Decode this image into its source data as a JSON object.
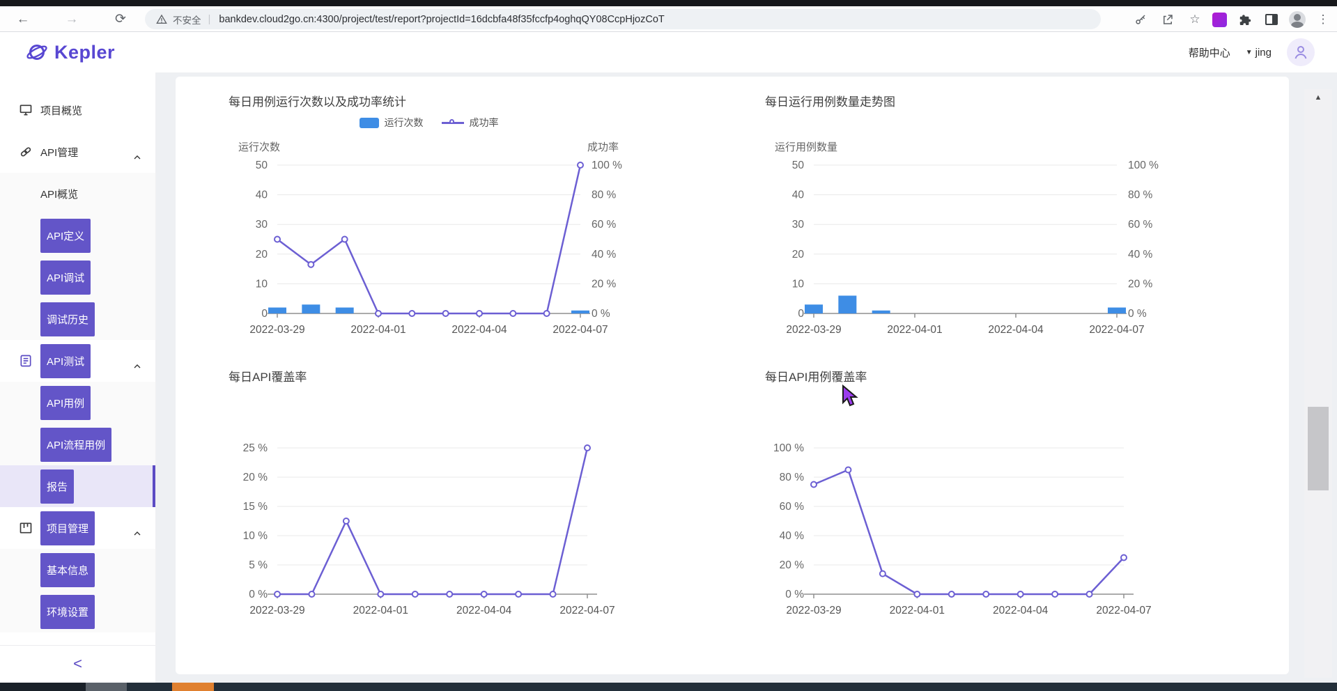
{
  "browser": {
    "security_label": "不安全",
    "url": "bankdev.cloud2go.cn:4300/project/test/report?projectId=16dcbfa48f35fccfp4oghqQY08CcpHjozCoT",
    "icons": {
      "back": "←",
      "forward": "→",
      "refresh": "⟳",
      "star": "☆",
      "menu": "⋮"
    }
  },
  "header": {
    "brand": "Kepler",
    "help_center": "帮助中心",
    "caret": "▼",
    "username": "jing"
  },
  "sidebar": {
    "collapse_label": "<",
    "items": [
      {
        "label": "项目概览",
        "type": "section",
        "icon": "monitor-icon",
        "expanded": false,
        "boxed": false
      },
      {
        "label": "API管理",
        "type": "section",
        "icon": "link-icon",
        "expanded": true,
        "boxed": false
      },
      {
        "label": "API概览",
        "type": "child",
        "boxed": false
      },
      {
        "label": "API定义",
        "type": "child",
        "boxed": true
      },
      {
        "label": "API调试",
        "type": "child",
        "boxed": true
      },
      {
        "label": "调试历史",
        "type": "child",
        "boxed": true
      },
      {
        "label": "API测试",
        "type": "section",
        "icon": "document-icon",
        "icon_color": "#5b4bc4",
        "expanded": true,
        "boxed": true
      },
      {
        "label": "API用例",
        "type": "child",
        "boxed": true
      },
      {
        "label": "API流程用例",
        "type": "child",
        "boxed": true
      },
      {
        "label": "报告",
        "type": "child",
        "boxed": true,
        "selected": true
      },
      {
        "label": "项目管理",
        "type": "section",
        "icon": "kanban-icon",
        "expanded": true,
        "boxed": true
      },
      {
        "label": "基本信息",
        "type": "child",
        "boxed": true
      },
      {
        "label": "环境设置",
        "type": "child",
        "boxed": true
      }
    ]
  },
  "ui": {
    "scroll_up_glyph": "▲"
  },
  "colors": {
    "accent_purple": "#6355c8",
    "brand_purple": "#5847d2",
    "bar_blue": "#3e8de5",
    "line_purple": "#6c5fd3",
    "selected_row_bg": "#e9e6f8",
    "progress_orange": "#e0802f"
  },
  "chart_data": [
    {
      "type": "bar+line",
      "title": "每日用例运行次数以及成功率统计",
      "legend": [
        {
          "label": "运行次数",
          "marker": "bar",
          "color": "#3e8de5"
        },
        {
          "label": "成功率",
          "marker": "line",
          "color": "#6c5fd3"
        }
      ],
      "x_categories": [
        "2022-03-29",
        "2022-03-30",
        "2022-03-31",
        "2022-04-01",
        "2022-04-02",
        "2022-04-03",
        "2022-04-04",
        "2022-04-05",
        "2022-04-06",
        "2022-04-07"
      ],
      "x_tick_indices": [
        0,
        3,
        6,
        9
      ],
      "left_axis": {
        "title": "运行次数",
        "min": 0,
        "max": 50,
        "tick_labels": [
          "50",
          "40",
          "30",
          "20",
          "10",
          "0"
        ]
      },
      "right_axis": {
        "title": "成功率",
        "min": 0,
        "max": 100,
        "tick_labels": [
          "100 %",
          "80 %",
          "60 %",
          "40 %",
          "20 %",
          "0 %"
        ]
      },
      "series": [
        {
          "name": "运行次数",
          "type": "bar",
          "axis": "left",
          "color": "#3e8de5",
          "values": [
            2,
            3,
            2,
            0,
            0,
            0,
            0,
            0,
            0,
            1
          ]
        },
        {
          "name": "成功率",
          "type": "line",
          "axis": "right",
          "color": "#6c5fd3",
          "values": [
            50,
            33,
            50,
            0,
            0,
            0,
            0,
            0,
            0,
            100
          ]
        }
      ]
    },
    {
      "type": "bar",
      "title": "每日运行用例数量走势图",
      "legend": [],
      "x_categories": [
        "2022-03-29",
        "2022-03-30",
        "2022-03-31",
        "2022-04-01",
        "2022-04-02",
        "2022-04-03",
        "2022-04-04",
        "2022-04-05",
        "2022-04-06",
        "2022-04-07"
      ],
      "x_tick_indices": [
        0,
        3,
        6,
        9
      ],
      "left_axis": {
        "title": "运行用例数量",
        "min": 0,
        "max": 50,
        "tick_labels": [
          "50",
          "40",
          "30",
          "20",
          "10",
          "0"
        ]
      },
      "right_axis": {
        "title": "",
        "min": 0,
        "max": 100,
        "tick_labels": [
          "100 %",
          "80 %",
          "60 %",
          "40 %",
          "20 %",
          "0 %"
        ]
      },
      "series": [
        {
          "name": "运行用例数量",
          "type": "bar",
          "axis": "left",
          "color": "#3e8de5",
          "values": [
            3,
            6,
            1,
            0,
            0,
            0,
            0,
            0,
            0,
            2
          ]
        }
      ]
    },
    {
      "type": "line",
      "title": "每日API覆盖率",
      "legend": [],
      "x_categories": [
        "2022-03-29",
        "2022-03-30",
        "2022-03-31",
        "2022-04-01",
        "2022-04-02",
        "2022-04-03",
        "2022-04-04",
        "2022-04-05",
        "2022-04-06",
        "2022-04-07"
      ],
      "x_tick_indices": [
        0,
        3,
        6,
        9
      ],
      "left_axis": {
        "title": "",
        "min": 0,
        "max": 25,
        "tick_labels": [
          "25 %",
          "20 %",
          "15 %",
          "10 %",
          "5 %",
          "0 %"
        ]
      },
      "series": [
        {
          "name": "每日API覆盖率",
          "type": "line",
          "axis": "left",
          "color": "#6c5fd3",
          "values": [
            0,
            0,
            12.5,
            0,
            0,
            0,
            0,
            0,
            0,
            25
          ]
        }
      ]
    },
    {
      "type": "line",
      "title": "每日API用例覆盖率",
      "legend": [],
      "x_categories": [
        "2022-03-29",
        "2022-03-30",
        "2022-03-31",
        "2022-04-01",
        "2022-04-02",
        "2022-04-03",
        "2022-04-04",
        "2022-04-05",
        "2022-04-06",
        "2022-04-07"
      ],
      "x_tick_indices": [
        0,
        3,
        6,
        9
      ],
      "left_axis": {
        "title": "",
        "min": 0,
        "max": 100,
        "tick_labels": [
          "100 %",
          "80 %",
          "60 %",
          "40 %",
          "20 %",
          "0 %"
        ]
      },
      "series": [
        {
          "name": "每日API用例覆盖率",
          "type": "line",
          "axis": "left",
          "color": "#6c5fd3",
          "values": [
            75,
            85,
            14,
            0,
            0,
            0,
            0,
            0,
            0,
            25
          ]
        }
      ]
    }
  ]
}
